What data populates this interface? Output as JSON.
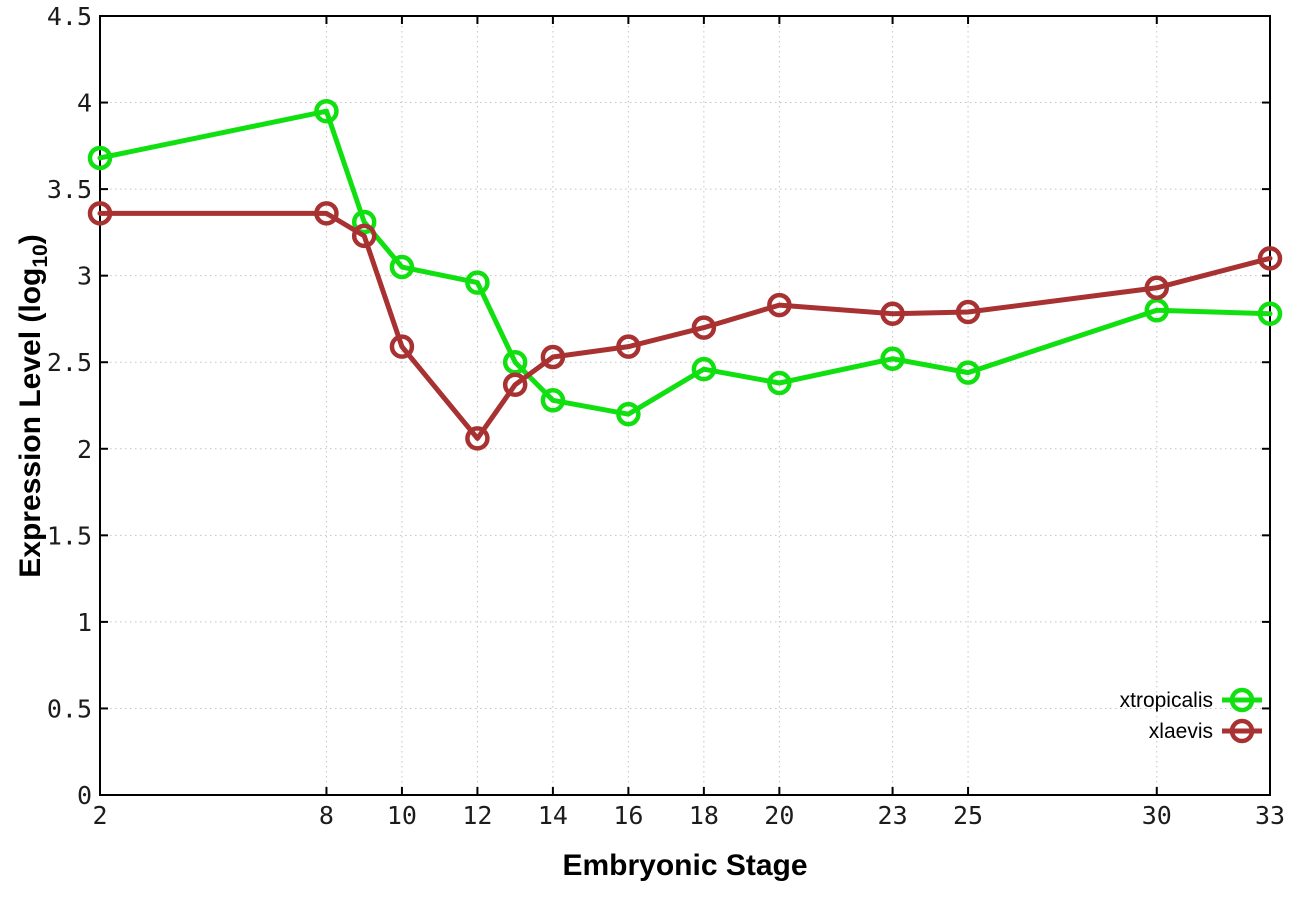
{
  "chart_data": {
    "type": "line",
    "title": "",
    "xlabel": "Embryonic Stage",
    "ylabel": {
      "main": "Expression Level (log",
      "sub": "10",
      "suffix": ")"
    },
    "xlim": [
      2,
      33
    ],
    "ylim": [
      0,
      4.5
    ],
    "grid": true,
    "grid_style": "dotted",
    "legend_position": "bottom-right",
    "x": [
      2,
      8,
      9,
      10,
      12,
      13,
      14,
      16,
      18,
      20,
      23,
      25,
      30,
      33
    ],
    "xticks": [
      {
        "value": 2,
        "label": "2"
      },
      {
        "value": 8,
        "label": "8"
      },
      {
        "value": 10,
        "label": "10"
      },
      {
        "value": 12,
        "label": "12"
      },
      {
        "value": 14,
        "label": "14"
      },
      {
        "value": 16,
        "label": "16"
      },
      {
        "value": 18,
        "label": "18"
      },
      {
        "value": 20,
        "label": "20"
      },
      {
        "value": 23,
        "label": "23"
      },
      {
        "value": 25,
        "label": "25"
      },
      {
        "value": 30,
        "label": "30"
      },
      {
        "value": 33,
        "label": "33"
      }
    ],
    "yticks": [
      {
        "value": 0,
        "label": "0"
      },
      {
        "value": 0.5,
        "label": "0.5"
      },
      {
        "value": 1,
        "label": "1"
      },
      {
        "value": 1.5,
        "label": "1.5"
      },
      {
        "value": 2,
        "label": "2"
      },
      {
        "value": 2.5,
        "label": "2.5"
      },
      {
        "value": 3,
        "label": "3"
      },
      {
        "value": 3.5,
        "label": "3.5"
      },
      {
        "value": 4,
        "label": "4"
      },
      {
        "value": 4.5,
        "label": "4.5"
      }
    ],
    "series": [
      {
        "name": "xtropicalis",
        "color": "#10e010",
        "marker": "open-circle",
        "values": [
          3.68,
          3.95,
          3.31,
          3.05,
          2.96,
          2.5,
          2.28,
          2.2,
          2.46,
          2.38,
          2.52,
          2.44,
          2.8,
          2.78
        ]
      },
      {
        "name": "xlaevis",
        "color": "#a83232",
        "marker": "open-circle",
        "values": [
          3.36,
          3.36,
          3.23,
          2.59,
          2.06,
          2.37,
          2.53,
          2.59,
          2.7,
          2.83,
          2.78,
          2.79,
          2.93,
          3.1
        ]
      }
    ],
    "colors": {
      "grid": "#c4c4c4",
      "axis": "#000000",
      "tick_text": "#1c1c1c"
    }
  }
}
